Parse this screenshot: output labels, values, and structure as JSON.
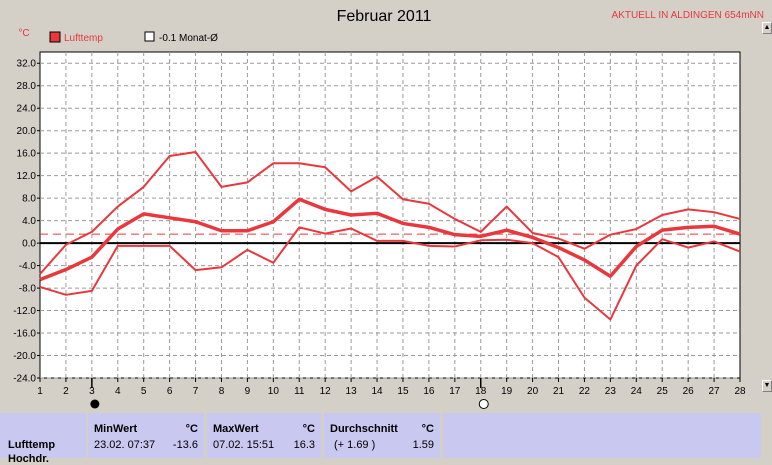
{
  "header": {
    "title": "Februar 2011",
    "location": "AKTUELL IN ALDINGEN 654mNN",
    "unit": "°C",
    "edge_letter": "d"
  },
  "legend": {
    "item1": "Lufttemp",
    "item2": "-0.1 Monat-Ø"
  },
  "stats": {
    "row_label": "Lufttemp",
    "row_label2": "Hochdr.",
    "min_header": "MinWert",
    "min_unit": "°C",
    "min_time": "23.02.  07:37",
    "min_value": "-13.6",
    "max_header": "MaxWert",
    "max_unit": "°C",
    "max_time": "07.02.  15:51",
    "max_value": "16.3",
    "avg_header": "Durchschnitt",
    "avg_unit": "°C",
    "avg_delta": "(+ 1.69 )",
    "avg_value": "1.59"
  },
  "colors": {
    "series": "#e8383d",
    "background": "#d4d0c8",
    "plot": "#ffffff",
    "stats_panel": "#c8c8f0"
  },
  "chart_data": {
    "type": "line",
    "title": "Februar 2011",
    "ylabel": "°C",
    "ylim": [
      -24,
      34
    ],
    "grid": true,
    "x": [
      1,
      2,
      3,
      4,
      5,
      6,
      7,
      8,
      9,
      10,
      11,
      12,
      13,
      14,
      15,
      16,
      17,
      18,
      19,
      20,
      21,
      22,
      23,
      24,
      25,
      26,
      27,
      28
    ],
    "xticks": [
      "1",
      "2",
      "3",
      "4",
      "5",
      "6",
      "7",
      "8",
      "9",
      "10",
      "11",
      "12",
      "13",
      "14",
      "15",
      "16",
      "17",
      "18",
      "19",
      "20",
      "21",
      "22",
      "23",
      "24",
      "25",
      "26",
      "27",
      "28"
    ],
    "yticks": [
      "32.0",
      "28.0",
      "24.0",
      "20.0",
      "16.0",
      "12.0",
      "8.0",
      "4.0",
      "0.0",
      "-4.0",
      "-8.0",
      "-12.0",
      "-16.0",
      "-20.0",
      "-24.0"
    ],
    "series": [
      {
        "name": "Lufttemp max",
        "values": [
          -5.5,
          -0.3,
          2.0,
          6.5,
          10.0,
          15.5,
          16.2,
          10.0,
          10.8,
          14.2,
          14.2,
          13.5,
          9.2,
          11.8,
          7.8,
          7.0,
          4.3,
          2.0,
          6.5,
          1.8,
          0.8,
          -1.0,
          1.5,
          2.5,
          5.0,
          6.0,
          5.5,
          4.3
        ]
      },
      {
        "name": "Lufttemp mean",
        "values": [
          -6.5,
          -4.7,
          -2.5,
          2.5,
          5.2,
          4.5,
          3.8,
          2.2,
          2.2,
          3.8,
          7.8,
          6.0,
          5.0,
          5.3,
          3.5,
          2.8,
          1.5,
          1.2,
          2.3,
          1.0,
          -0.8,
          -3.0,
          -5.9,
          -0.6,
          2.3,
          2.8,
          3.0,
          1.6
        ]
      },
      {
        "name": "Lufttemp min",
        "values": [
          -7.8,
          -9.2,
          -8.5,
          -0.5,
          -0.5,
          -0.5,
          -4.8,
          -4.3,
          -1.2,
          -3.5,
          2.8,
          1.7,
          2.6,
          0.4,
          0.4,
          -0.5,
          -0.6,
          0.5,
          0.6,
          0.0,
          -2.5,
          -9.7,
          -13.6,
          -4.0,
          0.7,
          -0.8,
          0.3,
          -1.5
        ]
      }
    ],
    "monthly_mean": -0.1,
    "monthly_mean_line_value": 1.6,
    "markers": [
      {
        "x": 3,
        "symbol": "filled-circle"
      },
      {
        "x": 18,
        "symbol": "open-circle"
      }
    ]
  }
}
